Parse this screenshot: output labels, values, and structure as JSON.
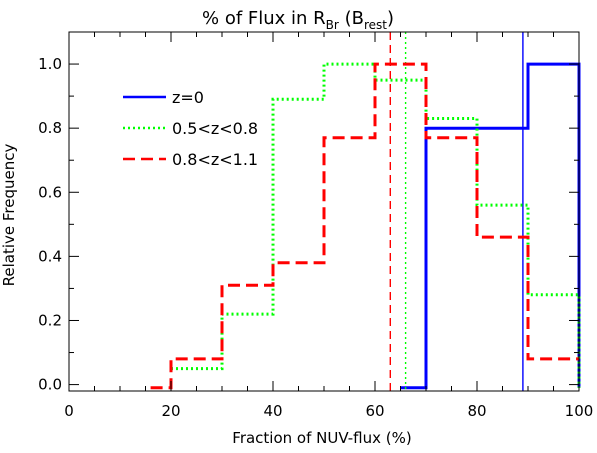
{
  "chart_data": {
    "type": "line",
    "title": {
      "main": "% of Flux in R",
      "sub": "Br",
      "paren_open": " (B",
      "paren_sub": "rest",
      "paren_close": ")"
    },
    "xlabel": "Fraction of NUV-flux (%)",
    "ylabel": "Relative Frequency",
    "xlim": [
      0,
      100
    ],
    "ylim": [
      -0.02,
      1.1
    ],
    "xticks": [
      0,
      20,
      40,
      60,
      80,
      100
    ],
    "xtick_labels": [
      "0",
      "20",
      "40",
      "60",
      "80",
      "100"
    ],
    "yticks": [
      0.0,
      0.2,
      0.4,
      0.6,
      0.8,
      1.0
    ],
    "ytick_labels": [
      "0.0",
      "0.2",
      "0.4",
      "0.6",
      "0.8",
      "1.0"
    ],
    "legend": {
      "placement": "top-left"
    },
    "series": [
      {
        "name": "z=0",
        "color": "#0000ff",
        "style": "solid",
        "width": 3,
        "steps": [
          [
            65,
            -0.01
          ],
          [
            70,
            -0.01
          ],
          [
            70,
            0.8
          ],
          [
            90,
            0.8
          ],
          [
            90,
            1.0
          ],
          [
            100,
            1.0
          ],
          [
            100,
            -0.01
          ]
        ],
        "marker_x": 89
      },
      {
        "name": "0.5<z<0.8",
        "color": "#00ff00",
        "style": "dotted",
        "width": 3,
        "steps": [
          [
            20,
            0.05
          ],
          [
            30,
            0.05
          ],
          [
            30,
            0.22
          ],
          [
            40,
            0.22
          ],
          [
            40,
            0.89
          ],
          [
            50,
            0.89
          ],
          [
            50,
            1.0
          ],
          [
            60,
            1.0
          ],
          [
            60,
            0.95
          ],
          [
            70,
            0.95
          ],
          [
            70,
            0.83
          ],
          [
            80,
            0.83
          ],
          [
            80,
            0.56
          ],
          [
            90,
            0.56
          ],
          [
            90,
            0.28
          ],
          [
            100,
            0.28
          ],
          [
            100,
            -0.01
          ]
        ],
        "marker_x": 66
      },
      {
        "name": "0.8<z<1.1",
        "color": "#ff0000",
        "style": "dashed",
        "width": 3,
        "steps": [
          [
            16,
            -0.01
          ],
          [
            20,
            -0.01
          ],
          [
            20,
            0.08
          ],
          [
            30,
            0.08
          ],
          [
            30,
            0.31
          ],
          [
            40,
            0.31
          ],
          [
            40,
            0.38
          ],
          [
            50,
            0.38
          ],
          [
            50,
            0.77
          ],
          [
            60,
            0.77
          ],
          [
            60,
            1.0
          ],
          [
            70,
            1.0
          ],
          [
            70,
            0.77
          ],
          [
            80,
            0.77
          ],
          [
            80,
            0.46
          ],
          [
            90,
            0.46
          ],
          [
            90,
            0.08
          ],
          [
            100,
            0.08
          ]
        ],
        "marker_x": 63
      }
    ]
  }
}
